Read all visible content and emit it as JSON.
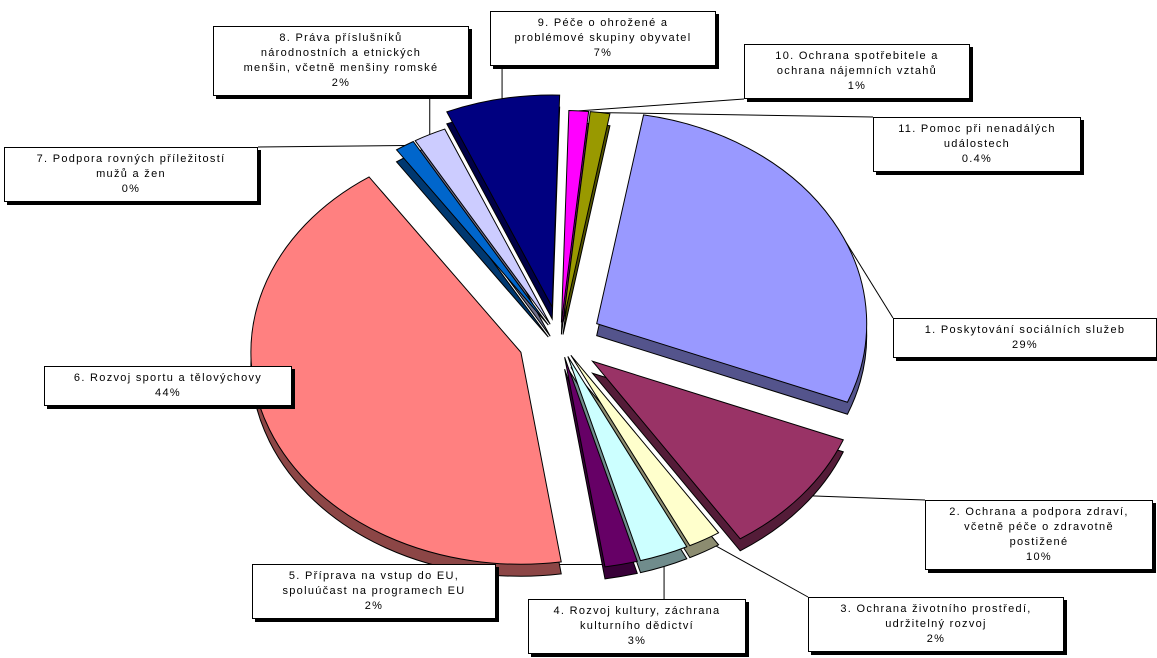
{
  "chart_data": {
    "type": "pie",
    "title": "",
    "exploded": true,
    "three_d": true,
    "slices": [
      {
        "label": "1. Poskytování sociálních služeb",
        "value": 29,
        "display": "29%",
        "color": "#9999ff"
      },
      {
        "label": "2. Ochrana a podpora zdraví, včetně péče o zdravotně postižené",
        "value": 10,
        "display": "10%",
        "color": "#993366"
      },
      {
        "label": "3. Ochrana životního prostředí, udržitelný rozvoj",
        "value": 2,
        "display": "2%",
        "color": "#ffffcc"
      },
      {
        "label": "4. Rozvoj kultury, záchrana kulturního dědictví",
        "value": 3,
        "display": "3%",
        "color": "#ccffff"
      },
      {
        "label": "5. Příprava na vstup do EU, spoluúčast na programech EU",
        "value": 2,
        "display": "2%",
        "color": "#660066"
      },
      {
        "label": "6. Rozvoj sportu a tělovýchovy",
        "value": 44,
        "display": "44%",
        "color": "#ff8080"
      },
      {
        "label": "7. Podpora rovných příležitostí mužů a žen",
        "value": 0.3,
        "display": "0%",
        "color": "#0066cc"
      },
      {
        "label": "8. Práva příslušníků národnostních a etnických menšin, včetně menšiny romské",
        "value": 2,
        "display": "2%",
        "color": "#ccccff"
      },
      {
        "label": "9. Péče o ohrožené a problémové skupiny obyvatel",
        "value": 7,
        "display": "7%",
        "color": "#000080"
      },
      {
        "label": "10. Ochrana spotřebitele a ochrana nájemních vztahů",
        "value": 1,
        "display": "1%",
        "color": "#ff00ff"
      },
      {
        "label": "11. Pomoc při nenadálých událostech",
        "value": 0.4,
        "display": "0.4%",
        "color": "#999900"
      }
    ]
  },
  "callouts": [
    {
      "text": "1. Poskytování sociálních služeb",
      "pct": "29%"
    },
    {
      "text": "2. Ochrana a podpora zdraví,\nvčetně péče o zdravotně\npostižené",
      "pct": "10%"
    },
    {
      "text": "3. Ochrana životního prostředí,\nudržitelný rozvoj",
      "pct": "2%"
    },
    {
      "text": "4. Rozvoj kultury, záchrana\nkulturního dědictví",
      "pct": "3%"
    },
    {
      "text": "5. Příprava na vstup do EU,\nspoluúčast na programech EU",
      "pct": "2%"
    },
    {
      "text": "6. Rozvoj sportu a tělovýchovy",
      "pct": "44%"
    },
    {
      "text": "7. Podpora rovných příležitostí\nmužů a žen",
      "pct": "0%"
    },
    {
      "text": "8. Práva příslušníků\nnárodnostních a etnických\nmenšin, včetně menšiny romské",
      "pct": "2%"
    },
    {
      "text": "9. Péče o ohrožené a\nproblémové skupiny obyvatel",
      "pct": "7%"
    },
    {
      "text": "10. Ochrana spotřebitele a\nochrana nájemních vztahů",
      "pct": "1%"
    },
    {
      "text": "11. Pomoc při nenadálých\nudálostech",
      "pct": "0.4%"
    }
  ]
}
